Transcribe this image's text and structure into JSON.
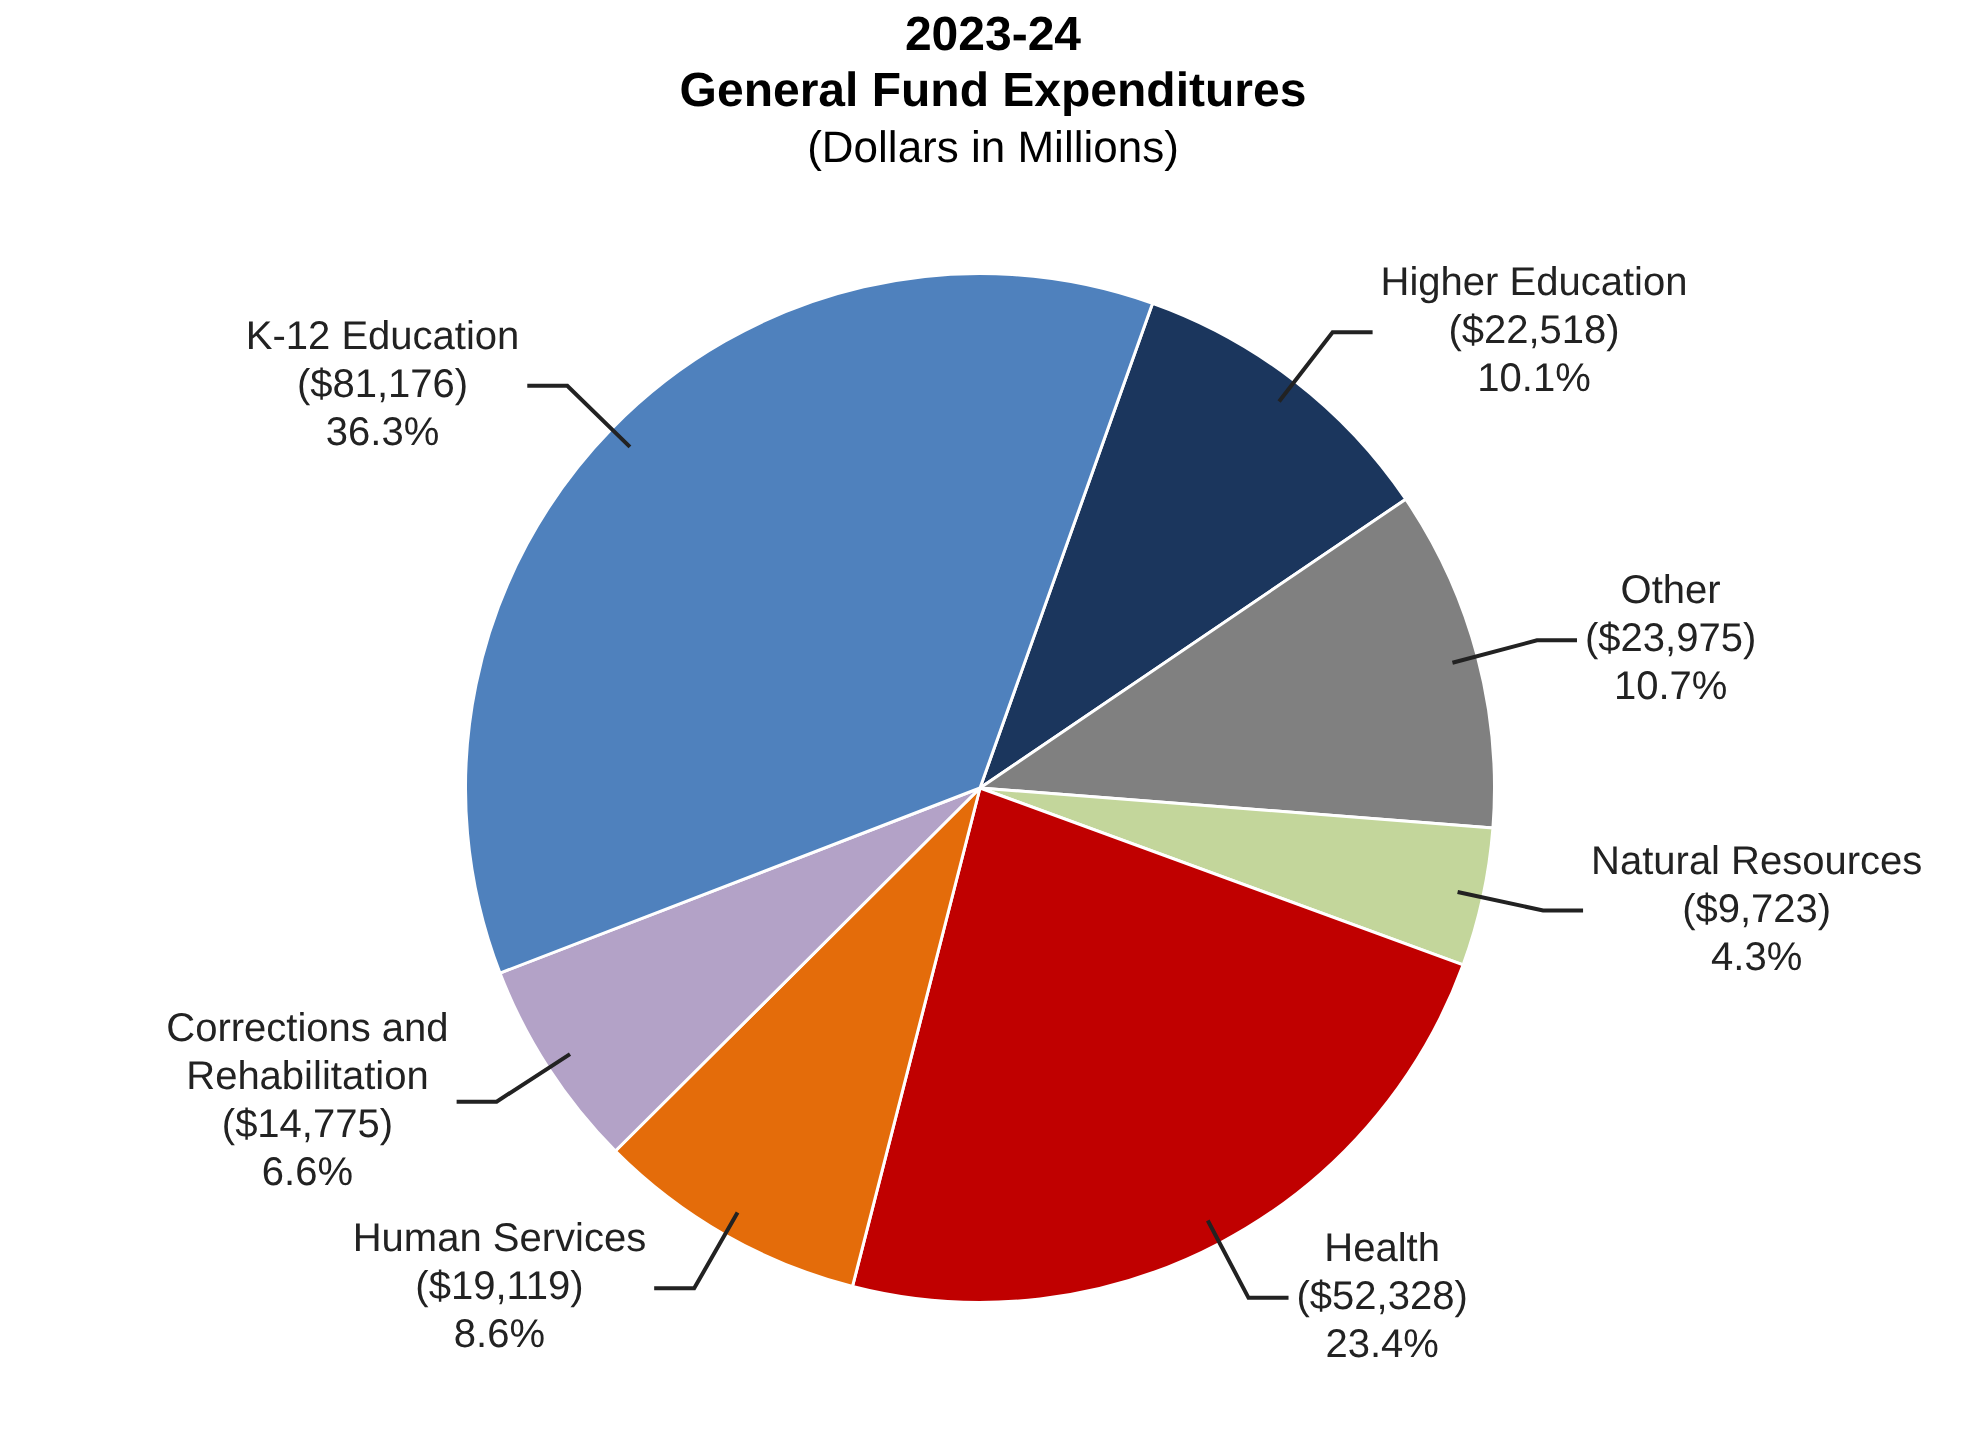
{
  "chart_data": {
    "type": "pie",
    "title": "2023-24\nGeneral Fund Expenditures",
    "subtitle": "(Dollars in Millions)",
    "categories": [
      "Higher Education",
      "Other",
      "Natural Resources",
      "Health",
      "Human Services",
      "Corrections and Rehabilitation",
      "K-12 Education"
    ],
    "values": [
      22518,
      23975,
      9723,
      52328,
      19119,
      14775,
      81176
    ],
    "colors": [
      "#1b365d",
      "#808080",
      "#c3d69b",
      "#c00000",
      "#e46c0a",
      "#b3a2c7",
      "#4f81bd"
    ],
    "value_labels": [
      "($22,518)\n10.1%",
      "($23,975)\n10.7%",
      "($9,723)\n4.3%",
      "($52,328)\n23.4%",
      "($19,119)\n8.6%",
      "($14,775)\n6.6%",
      "($81,176)\n36.3%"
    ],
    "legend": false
  }
}
